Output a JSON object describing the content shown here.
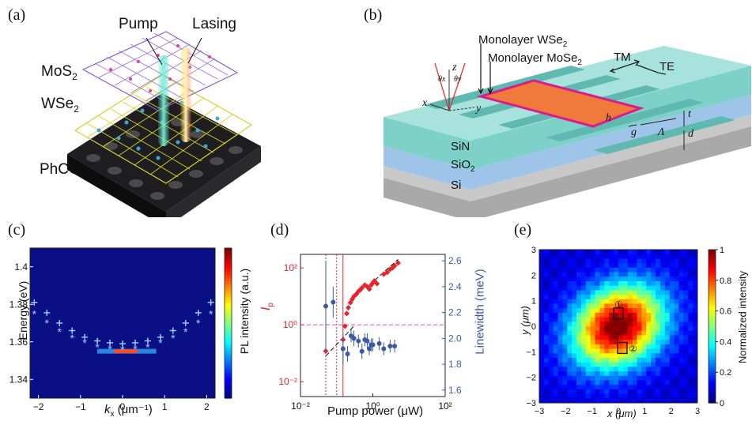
{
  "panels": {
    "a": {
      "label": "(a)",
      "pump": "Pump",
      "lasing": "Lasing",
      "mos2": "MoS",
      "wse2": "WSe",
      "sub": "2",
      "phcc": "PhCC"
    },
    "b": {
      "label": "(b)",
      "wse2": "Monolayer WSe",
      "mose2": "Monolayer MoSe",
      "sub": "2",
      "tm": "TM",
      "te": "TE",
      "sin": "SiN",
      "sio2": "SiO",
      "si": "Si",
      "z": "z",
      "x": "x",
      "y": "y",
      "thx": "θx",
      "thy": "θy",
      "h": "h",
      "t": "t",
      "g": "g",
      "lam": "Λ",
      "d": "d"
    },
    "c": {
      "label": "(c)",
      "ylabel": "Energy (eV)",
      "xlabel": "kx (μm⁻¹)",
      "xlabel_main": "k",
      "xlabel_sub": "x",
      "xlabel_unit": " (μm⁻¹)",
      "cbar_label": "PL intensity (a.u.)"
    },
    "d": {
      "label": "(d)",
      "xlabel": "Pump power (μW)",
      "ylabel_left": "Ip",
      "ylabel_left_main": "I",
      "ylabel_left_sub": "p",
      "ylabel_right": "Linewidth (meV)"
    },
    "e": {
      "label": "(e)",
      "xlabel": "x (μm)",
      "ylabel": "y (μm)",
      "cbar_label": "Normalized intensity",
      "marker1": "①",
      "marker2": "②"
    }
  },
  "chart_data": [
    {
      "panel": "c",
      "type": "heatmap",
      "xlabel": "kx (μm⁻¹)",
      "ylabel": "Energy (eV)",
      "xlim": [
        -2.2,
        2.2
      ],
      "ylim": [
        1.33,
        1.41
      ],
      "xticks": [
        "−2",
        "−1",
        "0",
        "1",
        "2"
      ],
      "yticks": [
        "1.34",
        "1.36",
        "1.38",
        "1.4"
      ],
      "colorbar_label": "PL intensity (a.u.)",
      "colormap": "jet",
      "series": [
        {
          "marker": "+",
          "x": [
            -2.1,
            -1.8,
            -1.5,
            -1.2,
            -0.9,
            -0.6,
            -0.3,
            0.0,
            0.3,
            0.6,
            0.9,
            1.2,
            1.5,
            1.8,
            2.1
          ],
          "y": [
            1.381,
            1.3755,
            1.37,
            1.366,
            1.3625,
            1.3605,
            1.3595,
            1.359,
            1.3595,
            1.3605,
            1.3625,
            1.366,
            1.37,
            1.3755,
            1.381
          ]
        },
        {
          "marker": "*",
          "x": [
            -2.1,
            -1.8,
            -1.5,
            -1.2,
            -0.9,
            -0.6,
            -0.3,
            0.0,
            0.3,
            0.6,
            0.9,
            1.2,
            1.5,
            1.8,
            2.1
          ],
          "y": [
            1.3745,
            1.3695,
            1.365,
            1.3615,
            1.359,
            1.3568,
            1.356,
            1.3555,
            1.356,
            1.3568,
            1.359,
            1.3615,
            1.365,
            1.3695,
            1.3745
          ]
        }
      ],
      "bright_spot": {
        "x": [
          -0.6,
          0.8
        ],
        "y": 1.355
      }
    },
    {
      "panel": "d",
      "type": "scatter",
      "xlabel": "Pump power (μW)",
      "xscale": "log",
      "xlim": [
        0.01,
        100
      ],
      "xticks": [
        "10⁻²",
        "10⁰",
        "10²"
      ],
      "ylabel_left": "Ip",
      "yscale_left": "log",
      "ylim_left": [
        0.003,
        300
      ],
      "yticks_left": [
        "10⁻²",
        "10⁰",
        "10²"
      ],
      "ylabel_right": "Linewidth (meV)",
      "ylim_right": [
        1.55,
        2.65
      ],
      "yticks_right": [
        "1.6",
        "1.8",
        "2.0",
        "2.2",
        "2.4",
        "2.6"
      ],
      "threshold_lines_x": [
        0.05,
        0.1,
        0.15
      ],
      "reference_line_y": 1.0,
      "series": [
        {
          "color": "#e8232c",
          "axis": "left",
          "x": [
            0.05,
            0.15,
            0.17,
            0.19,
            0.21,
            0.24,
            0.27,
            0.3,
            0.35,
            0.4,
            0.45,
            0.5,
            0.6,
            0.7,
            0.8,
            0.9,
            1.0,
            1.1,
            1.3,
            2.0,
            2.5,
            3.0,
            3.5,
            4.0,
            5.0
          ],
          "y": [
            0.12,
            0.3,
            0.9,
            2.5,
            4,
            6,
            8,
            10,
            12,
            15,
            17,
            20,
            25,
            22,
            18,
            25,
            30,
            35,
            28,
            60,
            70,
            90,
            100,
            120,
            150
          ]
        },
        {
          "color": "#3a5aa6",
          "axis": "right",
          "x": [
            0.05,
            0.08,
            0.15,
            0.2,
            0.25,
            0.3,
            0.4,
            0.5,
            0.6,
            0.7,
            0.8,
            0.9,
            1.0,
            1.5,
            2.0,
            3.0,
            4.0
          ],
          "y": [
            2.25,
            2.28,
            1.92,
            1.88,
            2.02,
            2.0,
            1.98,
            1.9,
            1.99,
            1.98,
            1.92,
            1.95,
            1.95,
            1.96,
            1.92,
            1.94,
            1.94
          ]
        }
      ]
    },
    {
      "panel": "e",
      "type": "heatmap",
      "xlabel": "x (μm)",
      "ylabel": "y (μm)",
      "xlim": [
        -3,
        3
      ],
      "ylim": [
        -3,
        3
      ],
      "xticks": [
        "−3",
        "−2",
        "−1",
        "0",
        "1",
        "2",
        "3"
      ],
      "yticks": [
        "−3",
        "−2",
        "−1",
        "0",
        "1",
        "2",
        "3"
      ],
      "colorbar_label": "Normalized intensity",
      "colorbar_ticks": [
        "0",
        "0.2",
        "0.4",
        "0.6",
        "0.8",
        "1"
      ],
      "colormap": "jet",
      "markers": [
        {
          "label": "①",
          "x": 0.0,
          "y": 0.5
        },
        {
          "label": "②",
          "x": 0.15,
          "y": -0.85
        }
      ]
    }
  ]
}
